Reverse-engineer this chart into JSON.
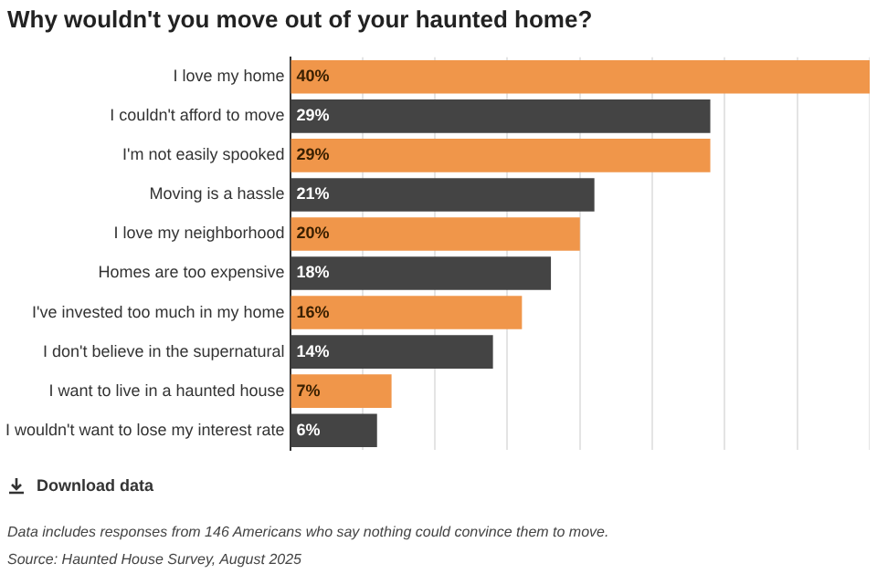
{
  "chart_data": {
    "type": "bar",
    "orientation": "horizontal",
    "title": "Why wouldn't you move out of your haunted home?",
    "categories": [
      "I love my home",
      "I couldn't afford to move",
      "I'm not easily spooked",
      "Moving is a hassle",
      "I love my neighborhood",
      "Homes are too expensive",
      "I've invested too much in my home",
      "I don't believe in the supernatural",
      "I want to live in a haunted house",
      "I wouldn't want to lose my interest rate"
    ],
    "values": [
      40,
      29,
      29,
      21,
      20,
      18,
      16,
      14,
      7,
      6
    ],
    "colors": [
      "#f0964a",
      "#444444",
      "#f0964a",
      "#444444",
      "#f0964a",
      "#444444",
      "#f0964a",
      "#444444",
      "#f0964a",
      "#444444"
    ],
    "value_labels": [
      "40%",
      "29%",
      "29%",
      "21%",
      "20%",
      "18%",
      "16%",
      "14%",
      "7%",
      "6%"
    ],
    "xlim": [
      0,
      40
    ],
    "xticks": [
      {
        "value": 0,
        "label": null
      },
      {
        "value": 5,
        "label": null
      },
      {
        "value": 10,
        "label": null
      },
      {
        "value": 15,
        "label": null
      },
      {
        "value": 20,
        "label": null
      },
      {
        "value": 25,
        "label": null
      },
      {
        "value": 30,
        "label": null
      },
      {
        "value": 35,
        "label": null
      },
      {
        "value": 40,
        "label": null
      }
    ],
    "grid": "x",
    "tick_labels": "y",
    "annotations": [
      "Download data",
      "Data includes responses from 146 Americans who say nothing could convince them to move.",
      "Source: Haunted House Survey, August 2025"
    ]
  }
}
